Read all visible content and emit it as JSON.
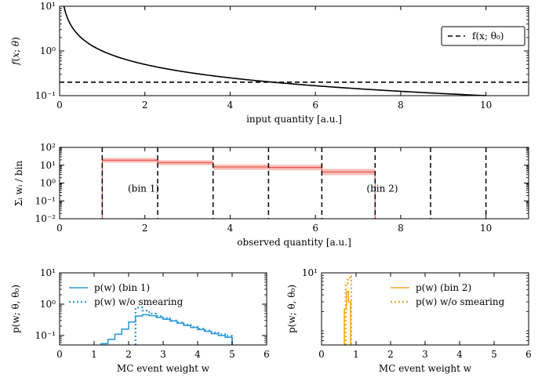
{
  "colors": {
    "axis": "#000000",
    "curve": "#000000",
    "red_line": "#e8564a",
    "red_band": "#f4a7a0",
    "blue": "#2e9bdc",
    "orange": "#f5a623"
  },
  "chart_data": [
    {
      "id": "top",
      "type": "line",
      "xlabel": "input quantity [a.u.]",
      "ylabel": "f(x; θ)",
      "xlim": [
        0,
        11
      ],
      "ylim": [
        0.1,
        10
      ],
      "yscale": "log",
      "xticks": [
        0,
        2,
        4,
        6,
        8,
        10
      ],
      "xtick_labels": [
        "0",
        "2",
        "4",
        "6",
        "8",
        "10"
      ],
      "ytick_labels": [
        "10⁻¹",
        "10⁰",
        "10¹"
      ],
      "legend": {
        "position": "top-right",
        "entries": [
          "f(x; θ₀)"
        ]
      },
      "series": [
        {
          "style": "solid",
          "x": [
            0.1,
            0.2,
            0.3,
            0.5,
            0.75,
            1,
            1.5,
            2,
            2.5,
            3,
            4,
            5,
            6,
            7,
            8,
            9,
            10
          ],
          "y": [
            10,
            5,
            3.33,
            2,
            1.33,
            1,
            0.667,
            0.5,
            0.4,
            0.333,
            0.25,
            0.2,
            0.167,
            0.143,
            0.125,
            0.111,
            0.1
          ]
        },
        {
          "name": "f(x; θ₀)",
          "style": "dashed",
          "x": [
            0,
            11
          ],
          "y": [
            0.2,
            0.2
          ]
        }
      ]
    },
    {
      "id": "middle",
      "type": "histogram",
      "xlabel": "observed quantity [a.u.]",
      "ylabel": "Σᵢ wᵢ / bin",
      "xlim": [
        0,
        11
      ],
      "ylim": [
        0.01,
        100
      ],
      "yscale": "log",
      "xticks": [
        0,
        2,
        4,
        6,
        8,
        10
      ],
      "xtick_labels": [
        "0",
        "2",
        "4",
        "6",
        "8",
        "10"
      ],
      "ytick_labels": [
        "10⁻²",
        "10⁻¹",
        "10⁰",
        "10¹",
        "10²"
      ],
      "bin_edges": [
        1.0,
        2.3,
        3.6,
        4.9,
        6.15,
        7.4
      ],
      "bin_values": [
        19,
        14,
        8,
        7.5,
        4.2
      ],
      "band_low": [
        14,
        10,
        5.5,
        5.2,
        2.8
      ],
      "band_high": [
        25,
        19,
        11,
        10.5,
        6.2
      ],
      "dashed_verticals": [
        1.0,
        2.3,
        3.6,
        4.9,
        6.15,
        7.4,
        8.7,
        10.0
      ],
      "annotations": [
        {
          "text": "(bin 1)",
          "x": 1.6,
          "y": 0.5
        },
        {
          "text": "(bin 2)",
          "x": 7.2,
          "y": 0.5
        }
      ]
    },
    {
      "id": "bottom-left",
      "type": "histogram",
      "xlabel": "MC event weight w",
      "ylabel": "p(w; θ, θ₀)",
      "xlim": [
        0,
        6
      ],
      "ylim": [
        0.05,
        10
      ],
      "yscale": "log",
      "xticks": [
        0,
        1,
        2,
        3,
        4,
        5,
        6
      ],
      "xtick_labels": [
        "0",
        "1",
        "2",
        "3",
        "4",
        "5",
        "6"
      ],
      "ytick_labels": [
        "10⁻¹",
        "10⁰",
        "10¹"
      ],
      "legend": {
        "position": "top-left",
        "entries": [
          "p(w) (bin 1)",
          "p(w) w/o smearing"
        ]
      },
      "series": [
        {
          "name": "p(w) (bin 1)",
          "style": "solid",
          "edges": [
            1.2,
            1.4,
            1.6,
            1.8,
            2.0,
            2.2,
            2.4,
            2.6,
            2.8,
            3.0,
            3.2,
            3.4,
            3.6,
            3.8,
            4.0,
            4.2,
            4.4,
            4.6,
            4.8,
            5.0
          ],
          "values": [
            0.055,
            0.075,
            0.11,
            0.16,
            0.27,
            0.42,
            0.46,
            0.43,
            0.38,
            0.33,
            0.29,
            0.25,
            0.21,
            0.18,
            0.155,
            0.135,
            0.115,
            0.1,
            0.088
          ]
        },
        {
          "name": "p(w) w/o smearing",
          "style": "dotted",
          "edges": [
            2.2,
            2.4,
            2.6,
            2.8,
            3.0,
            3.2,
            3.4,
            3.6,
            3.8,
            4.0,
            4.2,
            4.4,
            4.6,
            4.8,
            5.0
          ],
          "values": [
            0.78,
            0.62,
            0.5,
            0.42,
            0.36,
            0.3,
            0.26,
            0.22,
            0.19,
            0.165,
            0.145,
            0.125,
            0.11,
            0.098
          ]
        }
      ]
    },
    {
      "id": "bottom-right",
      "type": "histogram",
      "xlabel": "MC event weight w",
      "ylabel": "p(w; θ, θ₀)",
      "xlim": [
        0,
        6
      ],
      "ylim": [
        0.5,
        10
      ],
      "yscale": "log",
      "xticks": [
        0,
        1,
        2,
        3,
        4,
        5,
        6
      ],
      "xtick_labels": [
        "0",
        "1",
        "2",
        "3",
        "4",
        "5",
        "6"
      ],
      "ytick_labels": [
        "10¹"
      ],
      "legend": {
        "position": "top-right",
        "entries": [
          "p(w) (bin 2)",
          "p(w) w/o smearing"
        ]
      },
      "series": [
        {
          "name": "p(w) (bin 2)",
          "style": "solid",
          "edges": [
            0.66,
            0.72,
            0.78,
            0.84
          ],
          "values": [
            2.2,
            4.6,
            3.0
          ]
        },
        {
          "name": "p(w) w/o smearing",
          "style": "dotted",
          "edges": [
            0.7,
            0.76,
            0.82,
            0.86
          ],
          "values": [
            6.5,
            7.8,
            8.8
          ]
        }
      ]
    }
  ]
}
